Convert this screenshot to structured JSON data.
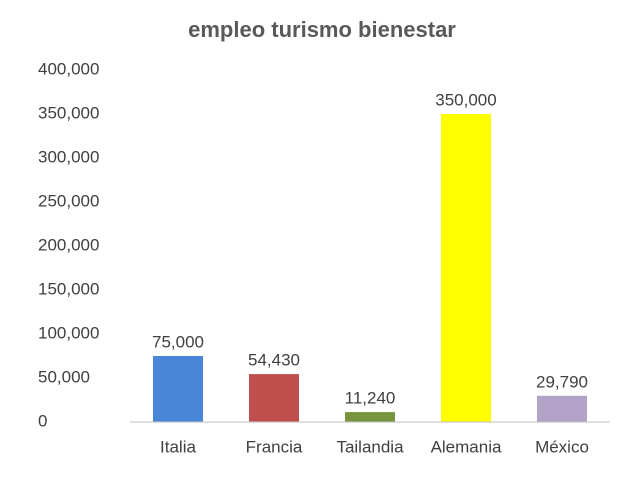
{
  "chart_data": {
    "type": "bar",
    "title": "empleo turismo bienestar",
    "categories": [
      "Italia",
      "Francia",
      "Tailandia",
      "Alemania",
      "México"
    ],
    "values": [
      75000,
      54430,
      11240,
      350000,
      29790
    ],
    "value_labels": [
      "75,000",
      "54,430",
      "11,240",
      "350,000",
      "29,790"
    ],
    "colors": [
      "#4a86d8",
      "#c0504d",
      "#77933c",
      "#ffff00",
      "#b3a2c7"
    ],
    "ylim": [
      0,
      400000
    ],
    "yticks": [
      0,
      {
        "value": 50000,
        "label": "50,000"
      },
      {
        "value": 100000,
        "label": "100,000"
      },
      {
        "value": 150000,
        "label": "150,000"
      },
      {
        "value": 200000,
        "label": "200,000"
      },
      {
        "value": 250000,
        "label": "250,000"
      },
      {
        "value": 300000,
        "label": "300,000"
      },
      {
        "value": 350000,
        "label": "350,000"
      },
      {
        "value": 400000,
        "label": "400,000"
      }
    ],
    "grid": false
  }
}
